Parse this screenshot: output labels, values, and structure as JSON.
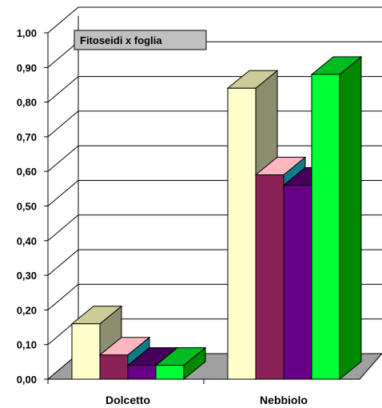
{
  "chart_data": {
    "type": "bar",
    "title": "Fitoseidi x foglia",
    "categories": [
      "Dolcetto",
      "Nebbiolo"
    ],
    "series": [
      {
        "values": [
          0.16,
          0.84
        ],
        "color": "#FFFFCC",
        "side": "#8C8C6E",
        "top": "#CCCC99"
      },
      {
        "values": [
          0.07,
          0.59
        ],
        "color": "#8B2257",
        "side": "#0F7B8A",
        "top": "#FFB6C1"
      },
      {
        "values": [
          0.04,
          0.56
        ],
        "color": "#660088",
        "side": "#44005B",
        "top": "#44005B"
      },
      {
        "values": [
          0.04,
          0.88
        ],
        "color": "#00FF33",
        "side": "#008800",
        "top": "#00BB22"
      }
    ],
    "y_ticks": [
      "0,00",
      "0,10",
      "0,20",
      "0,30",
      "0,40",
      "0,50",
      "0,60",
      "0,70",
      "0,80",
      "0,90",
      "1,00"
    ],
    "ylim": [
      0,
      1
    ],
    "grid": true,
    "floor_color": "#A0A0A0"
  }
}
